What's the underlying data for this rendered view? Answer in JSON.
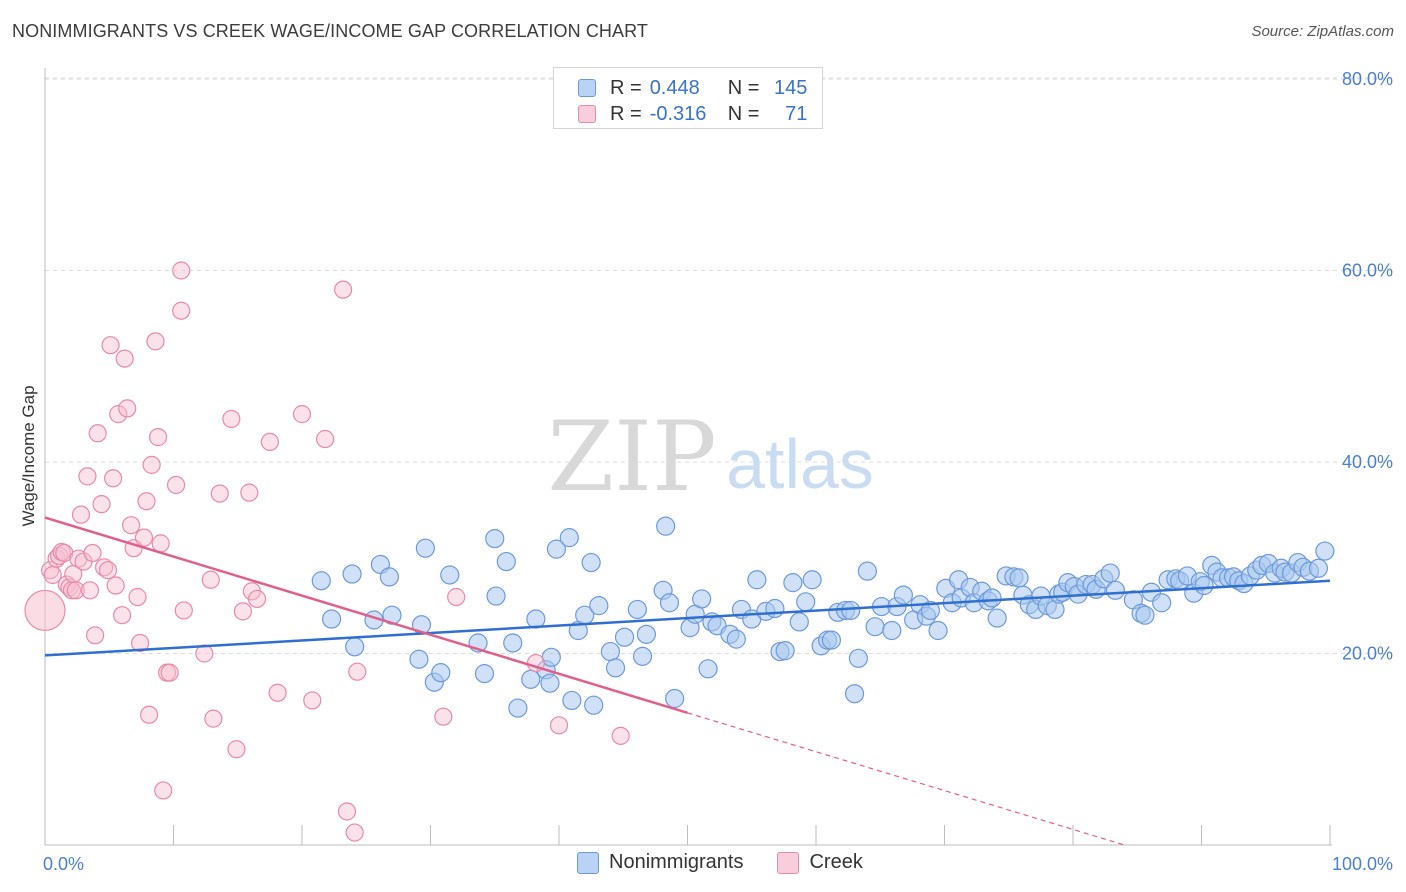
{
  "header": {
    "title": "NONIMMIGRANTS VS CREEK WAGE/INCOME GAP CORRELATION CHART",
    "source": "Source: ZipAtlas.com"
  },
  "legend_top": {
    "rows": [
      {
        "r_label": "R =",
        "r_value": "0.448",
        "n_label": "N =",
        "n_value": "145"
      },
      {
        "r_label": "R =",
        "r_value": "-0.316",
        "n_label": "N =",
        "n_value": "71"
      }
    ]
  },
  "legend_bottom": {
    "items": [
      {
        "label": "Nonimmigrants"
      },
      {
        "label": "Creek"
      }
    ]
  },
  "watermark": {
    "zip": "ZIP",
    "atlas": "atlas"
  },
  "colors": {
    "blue_fill": "#a9c9f0",
    "blue_stroke": "#6c9ad9",
    "blue_line": "#2f6fcf",
    "pink_fill": "#f7bfd0",
    "pink_stroke": "#e88aa8",
    "pink_line": "#e0608a",
    "tick_text": "#4a7fd0",
    "grid": "#dcdcdc"
  },
  "chart_data": {
    "type": "scatter",
    "title": "NONIMMIGRANTS VS CREEK WAGE/INCOME GAP CORRELATION CHART",
    "xlabel": "",
    "ylabel": "Wage/Income Gap",
    "xlim": [
      0,
      100
    ],
    "ylim": [
      0,
      80
    ],
    "x_tick_labels": [
      "0.0%",
      "100.0%"
    ],
    "y_ticks": [
      20,
      40,
      60,
      80
    ],
    "y_tick_labels": [
      "20.0%",
      "40.0%",
      "60.0%",
      "80.0%"
    ],
    "grid": true,
    "legend_position": "top-center",
    "series": [
      {
        "name": "Nonimmigrants",
        "r": 0.448,
        "n": 145,
        "trend": {
          "x": [
            0,
            100
          ],
          "y": [
            19.8,
            27.6
          ]
        },
        "points": [
          [
            21.5,
            27.6
          ],
          [
            22.3,
            23.6
          ],
          [
            23.9,
            28.3
          ],
          [
            24.1,
            20.7
          ],
          [
            25.6,
            23.5
          ],
          [
            26.1,
            29.3
          ],
          [
            26.8,
            28.0
          ],
          [
            27.0,
            24.0
          ],
          [
            29.1,
            19.4
          ],
          [
            29.3,
            23.0
          ],
          [
            29.6,
            31.0
          ],
          [
            30.3,
            17.0
          ],
          [
            30.8,
            18.0
          ],
          [
            31.5,
            28.2
          ],
          [
            33.7,
            21.1
          ],
          [
            34.2,
            17.9
          ],
          [
            35.0,
            32.0
          ],
          [
            35.1,
            26.0
          ],
          [
            35.9,
            29.6
          ],
          [
            36.4,
            21.1
          ],
          [
            36.8,
            14.3
          ],
          [
            37.8,
            17.3
          ],
          [
            38.2,
            23.6
          ],
          [
            39.0,
            18.3
          ],
          [
            39.3,
            16.9
          ],
          [
            39.4,
            19.6
          ],
          [
            39.8,
            30.9
          ],
          [
            40.8,
            32.1
          ],
          [
            41.0,
            15.1
          ],
          [
            41.5,
            22.4
          ],
          [
            42.0,
            24.0
          ],
          [
            42.5,
            29.5
          ],
          [
            42.7,
            14.6
          ],
          [
            43.1,
            25.0
          ],
          [
            44.0,
            20.2
          ],
          [
            44.4,
            18.5
          ],
          [
            45.1,
            21.7
          ],
          [
            46.1,
            24.6
          ],
          [
            46.5,
            19.7
          ],
          [
            46.8,
            22.0
          ],
          [
            48.1,
            26.6
          ],
          [
            48.3,
            33.3
          ],
          [
            48.6,
            25.3
          ],
          [
            49.0,
            15.3
          ],
          [
            50.2,
            22.7
          ],
          [
            50.6,
            24.1
          ],
          [
            51.1,
            25.7
          ],
          [
            51.6,
            18.4
          ],
          [
            51.9,
            23.3
          ],
          [
            52.3,
            22.9
          ],
          [
            53.3,
            22.0
          ],
          [
            53.8,
            21.5
          ],
          [
            54.2,
            24.6
          ],
          [
            55.0,
            23.6
          ],
          [
            55.4,
            27.7
          ],
          [
            56.1,
            24.4
          ],
          [
            56.8,
            24.7
          ],
          [
            57.2,
            20.2
          ],
          [
            57.6,
            20.3
          ],
          [
            58.2,
            27.4
          ],
          [
            58.7,
            23.3
          ],
          [
            59.2,
            25.4
          ],
          [
            59.7,
            27.7
          ],
          [
            60.4,
            20.8
          ],
          [
            60.9,
            21.4
          ],
          [
            61.2,
            21.4
          ],
          [
            61.7,
            24.3
          ],
          [
            62.3,
            24.5
          ],
          [
            62.7,
            24.5
          ],
          [
            63.3,
            19.5
          ],
          [
            63.0,
            15.8
          ],
          [
            64.0,
            28.6
          ],
          [
            64.6,
            22.8
          ],
          [
            65.1,
            24.9
          ],
          [
            65.9,
            22.4
          ],
          [
            66.3,
            24.9
          ],
          [
            66.8,
            26.1
          ],
          [
            67.6,
            23.5
          ],
          [
            68.1,
            25.1
          ],
          [
            68.6,
            23.9
          ],
          [
            68.9,
            24.5
          ],
          [
            69.5,
            22.4
          ],
          [
            70.1,
            26.8
          ],
          [
            70.6,
            25.3
          ],
          [
            71.1,
            27.7
          ],
          [
            71.3,
            25.8
          ],
          [
            72.0,
            26.9
          ],
          [
            72.3,
            25.3
          ],
          [
            72.9,
            26.5
          ],
          [
            73.4,
            25.5
          ],
          [
            73.7,
            25.8
          ],
          [
            74.1,
            23.7
          ],
          [
            74.8,
            28.1
          ],
          [
            75.4,
            28.0
          ],
          [
            75.8,
            27.9
          ],
          [
            76.1,
            26.1
          ],
          [
            76.6,
            25.1
          ],
          [
            77.1,
            24.6
          ],
          [
            77.5,
            26.0
          ],
          [
            78.0,
            25.0
          ],
          [
            78.6,
            24.6
          ],
          [
            78.9,
            26.2
          ],
          [
            79.2,
            26.4
          ],
          [
            79.6,
            27.4
          ],
          [
            80.1,
            27.0
          ],
          [
            80.4,
            26.2
          ],
          [
            81.0,
            27.2
          ],
          [
            81.5,
            27.2
          ],
          [
            81.8,
            26.7
          ],
          [
            82.4,
            27.8
          ],
          [
            82.9,
            28.4
          ],
          [
            83.3,
            26.6
          ],
          [
            84.7,
            25.6
          ],
          [
            85.3,
            24.2
          ],
          [
            85.6,
            24.0
          ],
          [
            86.1,
            26.4
          ],
          [
            86.9,
            25.3
          ],
          [
            87.4,
            27.7
          ],
          [
            88.0,
            27.8
          ],
          [
            88.3,
            27.6
          ],
          [
            88.9,
            28.1
          ],
          [
            89.4,
            26.3
          ],
          [
            89.9,
            27.5
          ],
          [
            90.2,
            27.1
          ],
          [
            90.8,
            29.2
          ],
          [
            91.2,
            28.5
          ],
          [
            91.6,
            27.9
          ],
          [
            92.1,
            27.9
          ],
          [
            92.5,
            28.0
          ],
          [
            92.9,
            27.6
          ],
          [
            93.3,
            27.3
          ],
          [
            93.8,
            28.1
          ],
          [
            94.3,
            28.7
          ],
          [
            94.7,
            29.2
          ],
          [
            95.2,
            29.4
          ],
          [
            95.7,
            28.4
          ],
          [
            96.2,
            28.9
          ],
          [
            96.5,
            28.5
          ],
          [
            97.0,
            28.4
          ],
          [
            97.5,
            29.5
          ],
          [
            97.9,
            29.0
          ],
          [
            98.4,
            28.6
          ],
          [
            99.1,
            28.9
          ],
          [
            99.6,
            30.7
          ]
        ]
      },
      {
        "name": "Creek",
        "r": -0.316,
        "n": 71,
        "trend": {
          "x": [
            0,
            50
          ],
          "y": [
            34.2,
            13.8
          ]
        },
        "trend_dashed": {
          "x": [
            50,
            84
          ],
          "y": [
            13.8,
            0
          ]
        },
        "points": [
          [
            0.4,
            28.7
          ],
          [
            0.6,
            28.2
          ],
          [
            0.9,
            29.9
          ],
          [
            1.1,
            30.2
          ],
          [
            1.3,
            30.6
          ],
          [
            1.5,
            30.5
          ],
          [
            1.7,
            27.2
          ],
          [
            1.9,
            26.9
          ],
          [
            2.1,
            26.6
          ],
          [
            2.2,
            28.3
          ],
          [
            2.4,
            26.6
          ],
          [
            2.6,
            29.9
          ],
          [
            2.8,
            34.5
          ],
          [
            3.0,
            29.6
          ],
          [
            3.3,
            38.5
          ],
          [
            3.5,
            26.6
          ],
          [
            3.7,
            30.5
          ],
          [
            3.9,
            21.9
          ],
          [
            4.1,
            43.0
          ],
          [
            4.4,
            35.6
          ],
          [
            4.6,
            29.0
          ],
          [
            4.9,
            28.7
          ],
          [
            5.1,
            52.2
          ],
          [
            5.3,
            38.3
          ],
          [
            5.5,
            27.1
          ],
          [
            5.7,
            45.0
          ],
          [
            6.0,
            24.0
          ],
          [
            6.2,
            50.8
          ],
          [
            6.4,
            45.6
          ],
          [
            6.7,
            33.4
          ],
          [
            6.9,
            31.0
          ],
          [
            7.2,
            25.9
          ],
          [
            7.4,
            21.1
          ],
          [
            7.7,
            32.1
          ],
          [
            7.9,
            35.9
          ],
          [
            8.1,
            13.6
          ],
          [
            8.3,
            39.7
          ],
          [
            8.6,
            52.6
          ],
          [
            8.8,
            42.6
          ],
          [
            9.0,
            31.5
          ],
          [
            9.2,
            5.7
          ],
          [
            9.5,
            18.0
          ],
          [
            9.7,
            18.0
          ],
          [
            10.2,
            37.6
          ],
          [
            10.6,
            60.0
          ],
          [
            10.6,
            55.8
          ],
          [
            10.8,
            24.5
          ],
          [
            12.4,
            20.0
          ],
          [
            12.9,
            27.7
          ],
          [
            13.1,
            13.2
          ],
          [
            13.6,
            36.7
          ],
          [
            14.5,
            44.5
          ],
          [
            14.9,
            10.0
          ],
          [
            15.4,
            24.4
          ],
          [
            15.9,
            36.8
          ],
          [
            16.1,
            26.5
          ],
          [
            16.5,
            25.7
          ],
          [
            17.5,
            42.1
          ],
          [
            18.1,
            15.9
          ],
          [
            20.0,
            45.0
          ],
          [
            20.8,
            15.1
          ],
          [
            21.8,
            42.4
          ],
          [
            23.2,
            58.0
          ],
          [
            23.5,
            3.5
          ],
          [
            24.3,
            18.1
          ],
          [
            24.1,
            1.3
          ],
          [
            31.0,
            13.4
          ],
          [
            32.0,
            25.9
          ],
          [
            38.2,
            19.0
          ],
          [
            40.0,
            12.5
          ],
          [
            44.8,
            11.4
          ]
        ]
      }
    ]
  }
}
